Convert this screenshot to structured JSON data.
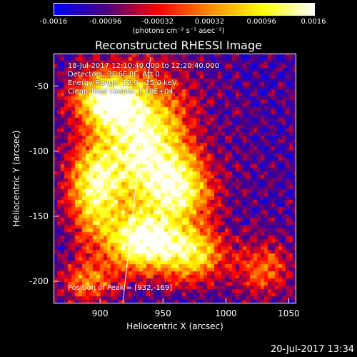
{
  "colorbar": {
    "ticks": [
      "-0.0016",
      "-0.00096",
      "-0.00032",
      "0.00032",
      "0.00096",
      "0.0016"
    ],
    "label": "(photons cm⁻² s⁻¹ asec⁻²)",
    "range": [
      -0.0016,
      0.0016
    ],
    "colors": [
      "#0000ff",
      "#4b0082",
      "#ff0000",
      "#ff8c00",
      "#ffff00",
      "#ffffff"
    ]
  },
  "chart_data": {
    "type": "heatmap",
    "title": "Reconstructed RHESSI Image",
    "xlabel": "Heliocentric X (arcsec)",
    "ylabel": "Heliocentric Y (arcsec)",
    "xlim": [
      863,
      1056
    ],
    "ylim": [
      -217,
      -25
    ],
    "xticks": [
      900,
      950,
      1000,
      1050
    ],
    "yticks": [
      -50,
      -100,
      -150,
      -200
    ],
    "info_lines": [
      "18-Jul-2017 12:10:40.000 to 12:20:40.000",
      "Detectors: 3F 6F 8F, Att 0",
      "Energy Range: 12.0 - 25.0 keV",
      "Clean     Total counts: 1.18E+04"
    ],
    "peak_text": "Position of Peak = [932,-169]",
    "peak": {
      "x": 932,
      "y": -169
    },
    "limb_line": [
      {
        "x": 918,
        "y": -217
      },
      {
        "x": 940,
        "y": -28
      }
    ],
    "bright_regions": [
      {
        "x": 905,
        "y": -60,
        "sx": 25,
        "sy": 20,
        "amp": 0.9
      },
      {
        "x": 935,
        "y": -95,
        "sx": 35,
        "sy": 50,
        "amp": 1.0
      },
      {
        "x": 895,
        "y": -130,
        "sx": 20,
        "sy": 35,
        "amp": 0.8
      },
      {
        "x": 965,
        "y": -130,
        "sx": 25,
        "sy": 25,
        "amp": 0.7
      },
      {
        "x": 935,
        "y": -170,
        "sx": 30,
        "sy": 22,
        "amp": 1.0
      },
      {
        "x": 975,
        "y": -180,
        "sx": 25,
        "sy": 20,
        "amp": 0.7
      },
      {
        "x": 1030,
        "y": -190,
        "sx": 20,
        "sy": 20,
        "amp": 0.45
      },
      {
        "x": 890,
        "y": -200,
        "sx": 20,
        "sy": 15,
        "amp": 0.5
      }
    ]
  },
  "timestamp": "20-Jul-2017 13:34"
}
